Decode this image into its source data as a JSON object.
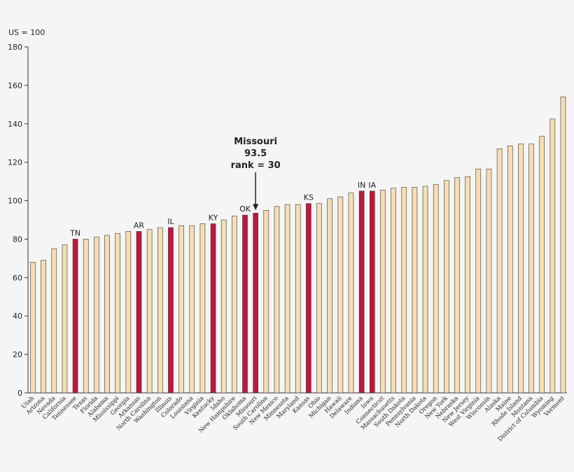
{
  "chart_data": {
    "type": "bar",
    "ylabel": "US = 100",
    "ylim": [
      0,
      180
    ],
    "yticks": [
      0,
      20,
      40,
      60,
      80,
      100,
      120,
      140,
      160,
      180
    ],
    "grid": false,
    "colors": {
      "default": "#f5deb3",
      "highlight": "#c0173f",
      "stroke": "#333333"
    },
    "categories": [
      "Utah",
      "Arizona",
      "Nevada",
      "California",
      "Tennessee",
      "Texas",
      "Florida",
      "Alabama",
      "Mississippi",
      "Georgia",
      "Arkansas",
      "North Carolina",
      "Washington",
      "Illinois",
      "Colorado",
      "Louisiana",
      "Virginia",
      "Kentucky",
      "Idaho",
      "New Hampshire",
      "Oklahoma",
      "Missouri",
      "South Carolina",
      "New Mexico",
      "Minnesota",
      "Maryland",
      "Kansas",
      "Ohio",
      "Michigan",
      "Hawaii",
      "Delaware",
      "Indiana",
      "Iowa",
      "Connecticut",
      "Massachusetts",
      "South Dakota",
      "Pennsylvania",
      "North Dakota",
      "Oregon",
      "New York",
      "Nebraska",
      "New Jersey",
      "West Virginia",
      "Wisconsin",
      "Alaska",
      "Maine",
      "Rhode Island",
      "Montana",
      "District of Columbia",
      "Wyoming",
      "Vermont"
    ],
    "values": [
      68,
      69,
      75,
      77,
      80,
      80,
      81,
      82,
      83,
      84,
      84,
      85,
      86,
      86,
      87,
      87,
      88,
      88,
      90,
      92,
      92.5,
      93.5,
      95,
      97,
      98,
      98,
      98.5,
      98.5,
      101,
      102,
      104,
      105,
      105,
      105.5,
      106.5,
      107,
      107,
      107.5,
      108.5,
      110.5,
      112,
      112.5,
      116.5,
      116.5,
      127,
      128.5,
      129.5,
      129.5,
      133.5,
      142.5,
      154
    ],
    "highlighted": [
      "Tennessee",
      "Arkansas",
      "Illinois",
      "Kentucky",
      "Oklahoma",
      "Missouri",
      "Kansas",
      "Indiana",
      "Iowa"
    ],
    "bar_labels": [
      {
        "category": "Tennessee",
        "text": "TN"
      },
      {
        "category": "Arkansas",
        "text": "AR"
      },
      {
        "category": "Illinois",
        "text": "IL"
      },
      {
        "category": "Kentucky",
        "text": "KY"
      },
      {
        "category": "Oklahoma",
        "text": "OK"
      },
      {
        "category": "Kansas",
        "text": "KS"
      },
      {
        "category": "Indiana",
        "text": "IN"
      },
      {
        "category": "Iowa",
        "text": "IA"
      }
    ],
    "annotation": {
      "category": "Missouri",
      "lines": [
        "Missouri",
        "93.5",
        "rank = 30"
      ]
    }
  }
}
